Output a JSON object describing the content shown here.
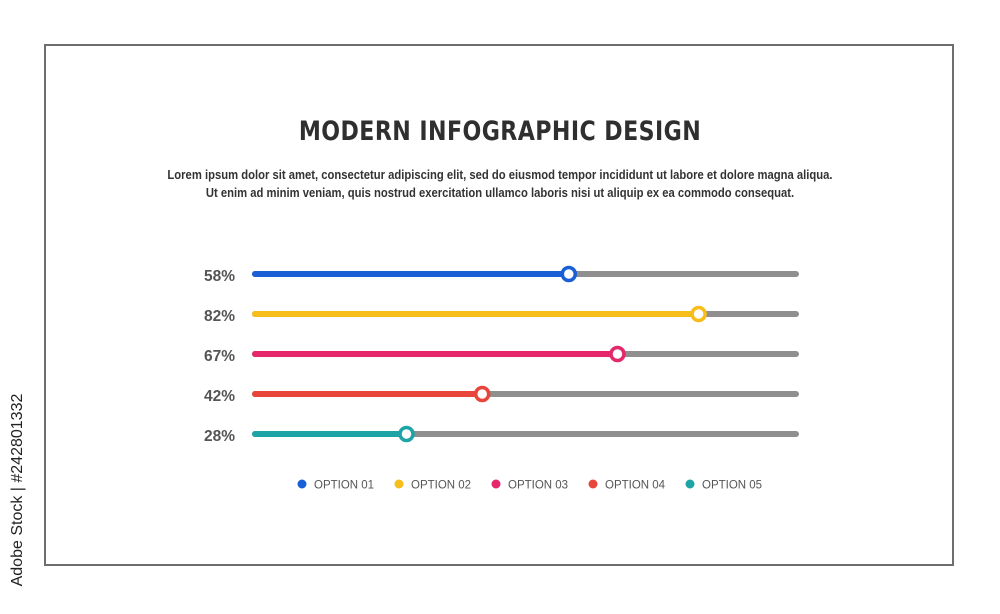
{
  "title": "MODERN INFOGRAPHIC DESIGN",
  "subtitle_lines": [
    "Lorem ipsum dolor sit amet, consectetur adipiscing elit, sed do eiusmod tempor incididunt ut labore et dolore magna aliqua.",
    "Ut enim ad minim veniam, quis nostrud exercitation ullamco laboris nisi ut aliquip ex ea commodo consequat."
  ],
  "side_caption": "Adobe Stock | #242801332",
  "chart_data": {
    "type": "bar",
    "orientation": "horizontal",
    "xlim": [
      0,
      100
    ],
    "grid": false,
    "legend_position": "bottom",
    "series": [
      {
        "name": "OPTION 01",
        "value": 58,
        "label": "58%",
        "color": "#1a5fd6"
      },
      {
        "name": "OPTION 02",
        "value": 82,
        "label": "82%",
        "color": "#f7bd1a"
      },
      {
        "name": "OPTION 03",
        "value": 67,
        "label": "67%",
        "color": "#e5286c"
      },
      {
        "name": "OPTION 04",
        "value": 42,
        "label": "42%",
        "color": "#e8463b"
      },
      {
        "name": "OPTION 05",
        "value": 28,
        "label": "28%",
        "color": "#1ea4a6"
      }
    ],
    "track_color": "#8f8f8f"
  }
}
